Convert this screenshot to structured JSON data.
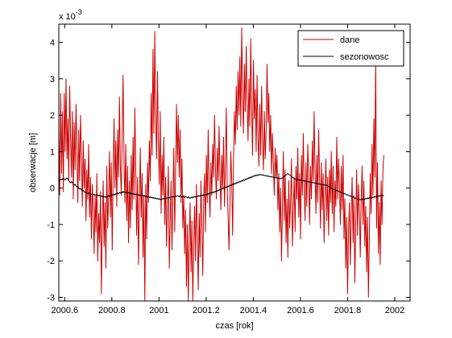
{
  "chart_data": {
    "type": "line",
    "title": "",
    "xlabel": "czas [rok]",
    "ylabel": "obserwacje [m]",
    "y_exponent_label": "x 10",
    "y_exponent_power": "-3",
    "xlim": [
      2000.575,
      2002.065
    ],
    "ylim": [
      -3.1,
      4.5
    ],
    "x_ticks": [
      2000.6,
      2000.8,
      2001,
      2001.2,
      2001.4,
      2001.6,
      2001.8,
      2002
    ],
    "x_tick_labels": [
      "2000.6",
      "2000.8",
      "2001",
      "2001.2",
      "2001.4",
      "2001.6",
      "2001.8",
      "2002"
    ],
    "y_ticks": [
      -3,
      -2,
      -1,
      0,
      1,
      2,
      3,
      4
    ],
    "y_tick_labels": [
      "-3",
      "-2",
      "-1",
      "0",
      "1",
      "2",
      "3",
      "4"
    ],
    "grid": false,
    "legend_placement": "top-right",
    "series": [
      {
        "name": "dane",
        "color": "#cc0000",
        "x_start": 2000.575,
        "x_step": 0.00384,
        "values": [
          1.6,
          -0.2,
          2.6,
          0.4,
          2.1,
          -0.1,
          2.6,
          1.0,
          3.0,
          0.8,
          1.9,
          0.2,
          2.8,
          1.4,
          0.3,
          2.1,
          -0.3,
          1.8,
          0.5,
          2.3,
          1.1,
          -0.4,
          1.6,
          0.2,
          2.0,
          0.9,
          -0.5,
          1.3,
          0.0,
          0.8,
          -0.9,
          0.5,
          -0.3,
          1.2,
          -0.8,
          0.3,
          -1.4,
          0.1,
          -0.6,
          -1.8,
          -0.2,
          -1.2,
          0.4,
          -2.0,
          -0.7,
          -1.5,
          -0.1,
          -2.9,
          -1.0,
          0.2,
          -1.6,
          -0.4,
          -2.2,
          0.6,
          -1.1,
          -0.3,
          1.0,
          -0.8,
          0.7,
          -1.7,
          0.4,
          1.9,
          0.0,
          1.3,
          -0.5,
          1.6,
          0.3,
          2.5,
          0.6,
          -0.2,
          1.5,
          3.1,
          0.8,
          -0.4,
          1.2,
          -0.9,
          0.6,
          -1.5,
          0.2,
          -1.1,
          0.9,
          -0.6,
          1.4,
          -0.3,
          2.2,
          0.5,
          -1.3,
          0.3,
          -2.1,
          -0.5,
          1.1,
          -0.8,
          0.4,
          -1.9,
          -0.2,
          -3.1,
          0.1,
          -1.4,
          0.7,
          -0.4,
          1.3,
          0.2,
          2.6,
          0.9,
          3.8,
          1.5,
          4.3,
          2.0,
          0.8,
          3.2,
          1.2,
          0.1,
          2.1,
          -0.7,
          0.9,
          -0.2,
          1.4,
          -1.0,
          0.3,
          -1.6,
          -0.5,
          0.6,
          -2.2,
          -0.9,
          0.2,
          -1.7,
          -0.3,
          1.1,
          -1.2,
          0.5,
          2.3,
          0.7,
          2.0,
          0.3,
          1.6,
          -0.4,
          0.8,
          -1.1,
          -0.2,
          -1.8,
          -0.6,
          -2.7,
          -1.0,
          -3.1,
          -1.5,
          -0.4,
          -2.3,
          -0.9,
          -3.1,
          -1.6,
          -0.5,
          -2.0,
          0.1,
          -1.3,
          -2.8,
          -0.7,
          -1.9,
          0.2,
          -1.0,
          -2.4,
          -0.3,
          0.4,
          -1.2,
          0.9,
          -0.4,
          1.6,
          0.1,
          -0.8,
          0.7,
          -0.2,
          1.2,
          0.3,
          2.0,
          0.6,
          -0.3,
          1.1,
          0.2,
          1.7,
          0.4,
          -0.6,
          0.9,
          0.0,
          1.4,
          -0.5,
          0.6,
          2.2,
          0.1,
          -0.8,
          -1.7,
          -0.4,
          1.0,
          0.2,
          -1.3,
          0.8,
          2.1,
          1.2,
          2.8,
          1.6,
          3.2,
          2.0,
          3.6,
          1.7,
          4.4,
          2.6,
          1.5,
          3.4,
          2.1,
          3.9,
          2.4,
          1.3,
          3.0,
          1.7,
          4.1,
          2.2,
          0.9,
          3.5,
          1.9,
          2.7,
          1.0,
          3.1,
          1.4,
          0.6,
          2.3,
          0.9,
          2.8,
          1.3,
          0.5,
          2.1,
          0.8,
          1.6,
          3.4,
          1.8,
          2.6,
          1.0,
          2.0,
          0.4,
          1.5,
          0.7,
          -0.2,
          1.1,
          0.3,
          0.9,
          -0.6,
          0.4,
          -1.2,
          0.0,
          -2.0,
          -0.5,
          1.0,
          -0.9,
          0.5,
          -1.5,
          -0.3,
          -1.9,
          0.2,
          -1.1,
          -0.4,
          0.8,
          -1.6,
          -0.6,
          0.3,
          -1.2,
          0.6,
          -0.3,
          1.1,
          -0.8,
          0.4,
          -1.4,
          0.9,
          -0.2,
          1.5,
          0.1,
          -0.9,
          0.7,
          -0.5,
          1.2,
          0.4,
          -1.0,
          0.6,
          -0.3,
          1.3,
          0.2,
          2.1,
          0.5,
          -0.7,
          0.9,
          -0.4,
          1.6,
          0.3,
          -1.1,
          0.7,
          -0.6,
          0.4,
          -1.5,
          -0.2,
          0.8,
          -0.9,
          0.3,
          -1.3,
          0.5,
          -0.4,
          1.0,
          -0.7,
          0.6,
          -1.2,
          0.2,
          -0.5,
          1.4,
          -0.3,
          0.8,
          0.1,
          -1.0,
          0.6,
          -0.6,
          0.9,
          -1.4,
          -0.3,
          -2.2,
          -0.8,
          -2.9,
          -1.2,
          -0.4,
          -2.1,
          -0.7,
          0.3,
          -1.5,
          -0.2,
          -2.6,
          -0.9,
          0.5,
          -1.3,
          0.1,
          -0.6,
          -1.9,
          -0.3,
          0.6,
          -1.0,
          0.2,
          -1.6,
          -0.5,
          -2.3,
          -0.8,
          -3.0,
          -1.4,
          0.4,
          -0.7,
          1.2,
          -0.2,
          1.9,
          0.3,
          3.6,
          -1.1,
          0.7,
          -1.8,
          -0.4,
          -2.1,
          0.2,
          -1.0,
          0.5,
          0.9
        ]
      },
      {
        "name": "sezonowosc",
        "color": "#000000",
        "x_start": 2000.575,
        "x_step": 0.00384,
        "values": [
          0.18,
          0.21,
          0.24,
          0.22,
          0.25,
          0.27,
          0.24,
          0.22,
          0.26,
          0.28,
          0.25,
          0.21,
          0.17,
          0.14,
          0.18,
          0.15,
          0.11,
          0.08,
          0.1,
          0.06,
          0.03,
          0.05,
          0.0,
          -0.03,
          -0.01,
          -0.05,
          -0.08,
          -0.06,
          -0.1,
          -0.12,
          -0.1,
          -0.14,
          -0.16,
          -0.13,
          -0.17,
          -0.15,
          -0.18,
          -0.16,
          -0.19,
          -0.17,
          -0.2,
          -0.18,
          -0.21,
          -0.19,
          -0.22,
          -0.2,
          -0.23,
          -0.21,
          -0.24,
          -0.22,
          -0.25,
          -0.23,
          -0.26,
          -0.22,
          -0.24,
          -0.2,
          -0.23,
          -0.19,
          -0.21,
          -0.18,
          -0.2,
          -0.17,
          -0.19,
          -0.15,
          -0.17,
          -0.13,
          -0.16,
          -0.12,
          -0.14,
          -0.11,
          -0.13,
          -0.09,
          -0.12,
          -0.1,
          -0.13,
          -0.11,
          -0.14,
          -0.12,
          -0.15,
          -0.13,
          -0.16,
          -0.14,
          -0.17,
          -0.15,
          -0.18,
          -0.16,
          -0.19,
          -0.17,
          -0.2,
          -0.18,
          -0.21,
          -0.19,
          -0.22,
          -0.2,
          -0.23,
          -0.21,
          -0.24,
          -0.22,
          -0.25,
          -0.23,
          -0.26,
          -0.24,
          -0.27,
          -0.25,
          -0.28,
          -0.26,
          -0.29,
          -0.27,
          -0.3,
          -0.28,
          -0.31,
          -0.29,
          -0.32,
          -0.3,
          -0.31,
          -0.29,
          -0.3,
          -0.28,
          -0.29,
          -0.27,
          -0.28,
          -0.26,
          -0.27,
          -0.25,
          -0.26,
          -0.24,
          -0.25,
          -0.23,
          -0.24,
          -0.22,
          -0.23,
          -0.21,
          -0.22,
          -0.24,
          -0.21,
          -0.23,
          -0.25,
          -0.22,
          -0.24,
          -0.26,
          -0.23,
          -0.25,
          -0.27,
          -0.24,
          -0.26,
          -0.28,
          -0.25,
          -0.27,
          -0.24,
          -0.26,
          -0.23,
          -0.25,
          -0.22,
          -0.24,
          -0.21,
          -0.23,
          -0.2,
          -0.22,
          -0.19,
          -0.21,
          -0.18,
          -0.2,
          -0.17,
          -0.19,
          -0.15,
          -0.17,
          -0.14,
          -0.16,
          -0.12,
          -0.14,
          -0.11,
          -0.13,
          -0.09,
          -0.11,
          -0.07,
          -0.09,
          -0.05,
          -0.07,
          -0.03,
          -0.05,
          -0.01,
          -0.03,
          0.01,
          -0.01,
          0.03,
          0.01,
          0.05,
          0.03,
          0.07,
          0.05,
          0.09,
          0.07,
          0.11,
          0.09,
          0.13,
          0.11,
          0.15,
          0.13,
          0.17,
          0.15,
          0.19,
          0.17,
          0.21,
          0.19,
          0.23,
          0.21,
          0.25,
          0.23,
          0.27,
          0.25,
          0.29,
          0.27,
          0.31,
          0.29,
          0.33,
          0.31,
          0.35,
          0.33,
          0.36,
          0.34,
          0.37,
          0.35,
          0.38,
          0.36,
          0.37,
          0.35,
          0.36,
          0.34,
          0.35,
          0.33,
          0.34,
          0.32,
          0.33,
          0.31,
          0.32,
          0.3,
          0.31,
          0.29,
          0.3,
          0.28,
          0.29,
          0.27,
          0.28,
          0.26,
          0.27,
          0.25,
          0.26,
          0.28,
          0.3,
          0.32,
          0.34,
          0.36,
          0.38,
          0.4,
          0.38,
          0.36,
          0.34,
          0.32,
          0.3,
          0.28,
          0.26,
          0.24,
          0.25,
          0.23,
          0.24,
          0.22,
          0.23,
          0.21,
          0.22,
          0.2,
          0.21,
          0.19,
          0.2,
          0.18,
          0.19,
          0.17,
          0.18,
          0.16,
          0.17,
          0.15,
          0.16,
          0.14,
          0.15,
          0.13,
          0.14,
          0.12,
          0.13,
          0.11,
          0.12,
          0.1,
          0.11,
          0.09,
          0.1,
          0.08,
          0.09,
          0.07,
          0.08,
          0.06,
          0.05,
          0.03,
          0.02,
          0.0,
          -0.02,
          -0.04,
          -0.03,
          -0.05,
          -0.07,
          -0.06,
          -0.08,
          -0.1,
          -0.09,
          -0.11,
          -0.13,
          -0.12,
          -0.14,
          -0.16,
          -0.15,
          -0.17,
          -0.19,
          -0.18,
          -0.2,
          -0.22,
          -0.21,
          -0.23,
          -0.25,
          -0.24,
          -0.26,
          -0.28,
          -0.27,
          -0.29,
          -0.31,
          -0.3,
          -0.32,
          -0.31,
          -0.33,
          -0.3,
          -0.32,
          -0.29,
          -0.31,
          -0.28,
          -0.3,
          -0.27,
          -0.29,
          -0.26,
          -0.28,
          -0.25,
          -0.27,
          -0.24,
          -0.26,
          -0.23,
          -0.25,
          -0.22,
          -0.24,
          -0.21,
          -0.23,
          -0.2,
          -0.22,
          -0.19,
          -0.21,
          -0.2
        ]
      }
    ]
  }
}
